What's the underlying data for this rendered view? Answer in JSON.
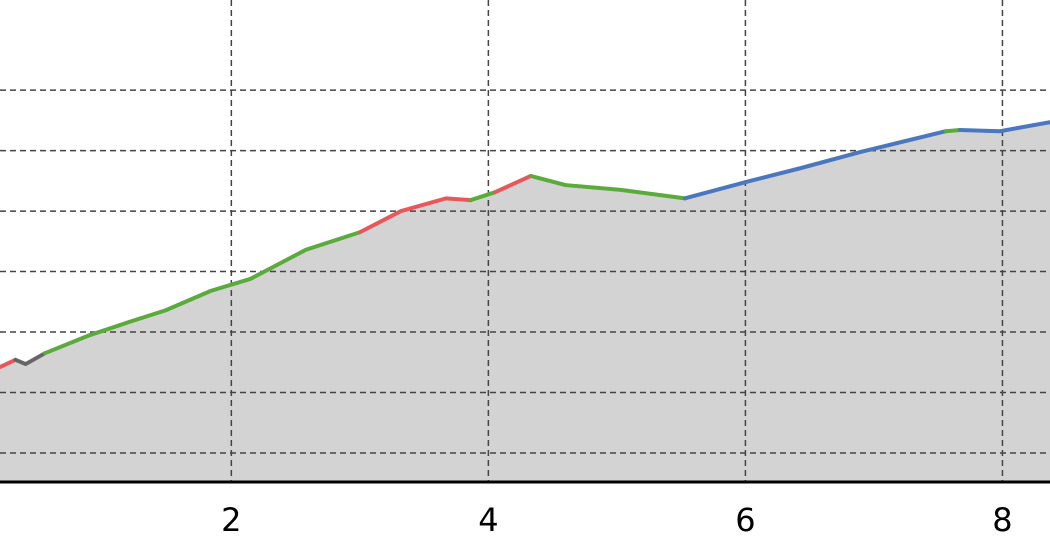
{
  "chart_data": {
    "type": "area",
    "xlim": [
      0.2,
      8.37
    ],
    "xticks": [
      2,
      4,
      6,
      8
    ],
    "ylim": [
      0.52,
      8.49
    ],
    "ygrid": [
      1,
      2,
      3,
      4,
      5,
      6,
      7
    ],
    "grid": true,
    "area_color": "#d3d3d3",
    "series": [
      {
        "color": "#e8585a",
        "x": [
          0.2,
          0.32
        ],
        "values": [
          2.42,
          2.54
        ]
      },
      {
        "color": "#666666",
        "x": [
          0.32,
          0.4,
          0.55
        ],
        "values": [
          2.54,
          2.47,
          2.65
        ]
      },
      {
        "color": "#5aab3c",
        "x": [
          0.55,
          0.9,
          1.21,
          1.49,
          1.84,
          2.15,
          2.58,
          3.0
        ],
        "values": [
          2.65,
          2.95,
          3.17,
          3.36,
          3.68,
          3.88,
          4.36,
          4.65
        ]
      },
      {
        "color": "#e8585a",
        "x": [
          3.0,
          3.32,
          3.67,
          3.86
        ],
        "values": [
          4.65,
          5.0,
          5.21,
          5.18
        ]
      },
      {
        "color": "#5aab3c",
        "x": [
          3.86,
          4.05
        ],
        "values": [
          5.18,
          5.31
        ]
      },
      {
        "color": "#e8585a",
        "x": [
          4.05,
          4.33
        ],
        "values": [
          5.31,
          5.58
        ]
      },
      {
        "color": "#5aab3c",
        "x": [
          4.33,
          4.6,
          5.03,
          5.53
        ],
        "values": [
          5.58,
          5.43,
          5.35,
          5.21
        ]
      },
      {
        "color": "#4a78c0",
        "x": [
          5.53,
          6.04,
          6.43,
          6.9,
          7.21,
          7.56
        ],
        "values": [
          5.21,
          5.5,
          5.71,
          5.98,
          6.14,
          6.32
        ]
      },
      {
        "color": "#5aab3c",
        "x": [
          7.56,
          7.67
        ],
        "values": [
          6.32,
          6.34
        ]
      },
      {
        "color": "#4a78c0",
        "x": [
          7.67,
          7.98,
          8.37
        ],
        "values": [
          6.34,
          6.32,
          6.47
        ]
      }
    ]
  }
}
